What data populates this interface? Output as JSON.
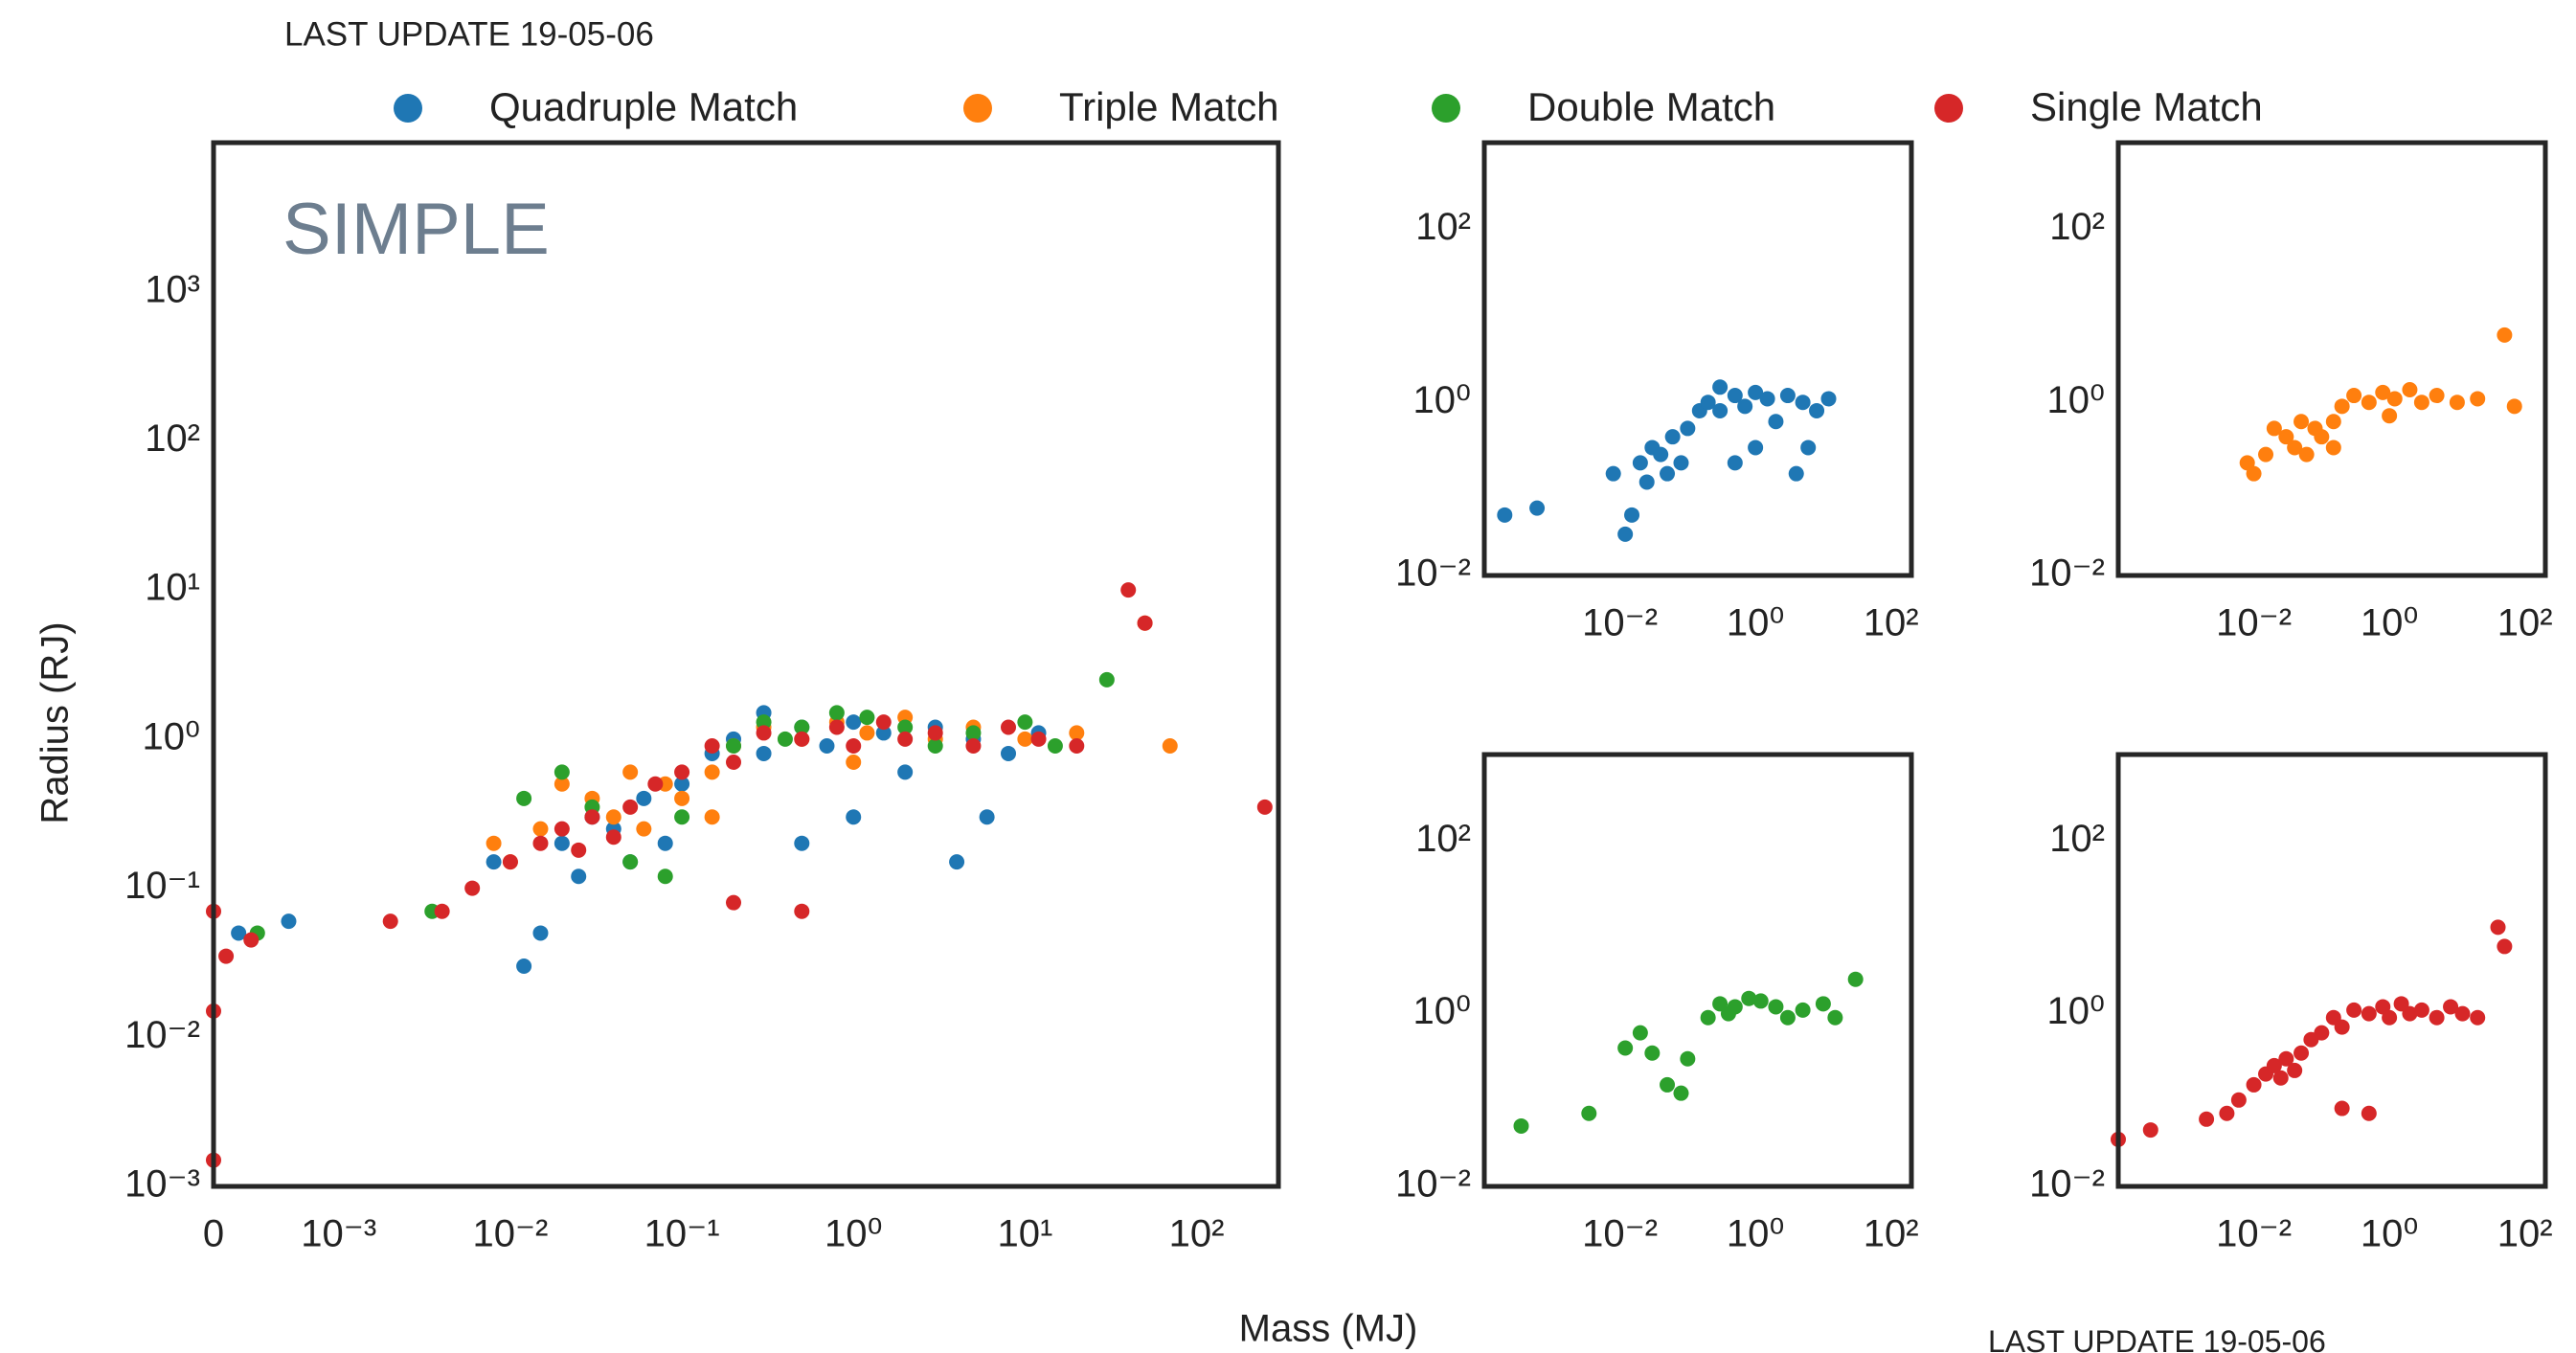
{
  "chart_data": [
    {
      "type": "scatter",
      "subtitle": "LAST UPDATE 19-05-06",
      "annotation": "SIMPLE",
      "x_label": "Mass (MJ)",
      "y_label": "Radius (RJ)",
      "xscale": "symlog",
      "yscale": "log",
      "legend": "top",
      "grid": false,
      "xlim": [
        0,
        300
      ],
      "ylim": [
        0.001,
        10000
      ],
      "xticks": [
        0,
        {
          "value": 0.001,
          "label": "10⁻³"
        },
        {
          "value": 0.01,
          "label": "10⁻²"
        },
        {
          "value": 0.1,
          "label": "10⁻¹"
        },
        {
          "value": 1,
          "label": "10⁰"
        },
        {
          "value": 10,
          "label": "10¹"
        },
        {
          "value": 100,
          "label": "10²"
        }
      ],
      "yticks": [
        {
          "value": 0.001,
          "label": "10⁻³"
        },
        {
          "value": 0.01,
          "label": "10⁻²"
        },
        {
          "value": 0.1,
          "label": "10⁻¹"
        },
        {
          "value": 1,
          "label": "10⁰"
        },
        {
          "value": 10,
          "label": "10¹"
        },
        {
          "value": 100,
          "label": "10²"
        },
        {
          "value": 1000,
          "label": "10³"
        }
      ],
      "series": [
        {
          "name": "Quadruple Match",
          "color": "#1f77b4",
          "x": [
            0.0002,
            0.0006,
            0.008,
            0.012,
            0.015,
            0.02,
            0.03,
            0.025,
            0.04,
            0.05,
            0.06,
            0.08,
            0.1,
            0.15,
            0.2,
            0.3,
            0.5,
            0.7,
            1.0,
            1.5,
            2,
            3,
            5,
            8,
            1,
            0.5,
            4,
            6,
            0.3,
            12
          ],
          "values": [
            0.05,
            0.06,
            0.15,
            0.03,
            0.05,
            0.2,
            0.3,
            0.12,
            0.25,
            0.15,
            0.4,
            0.2,
            0.5,
            0.8,
            1.0,
            1.5,
            1.2,
            0.9,
            1.3,
            1.1,
            0.6,
            1.2,
            1.0,
            0.8,
            0.3,
            0.2,
            0.15,
            0.3,
            0.8,
            1.1
          ]
        },
        {
          "name": "Triple Match",
          "color": "#ff7f0e",
          "x": [
            0.008,
            0.01,
            0.015,
            0.02,
            0.03,
            0.04,
            0.05,
            0.06,
            0.08,
            0.1,
            0.15,
            0.2,
            0.3,
            0.5,
            0.8,
            1.2,
            2,
            3,
            5,
            10,
            20,
            50,
            70,
            0.15,
            1
          ],
          "values": [
            0.2,
            0.15,
            0.25,
            0.5,
            0.4,
            0.3,
            0.6,
            0.25,
            0.5,
            0.4,
            0.6,
            0.9,
            1.2,
            1.0,
            1.3,
            1.1,
            1.4,
            1.0,
            1.2,
            1.0,
            1.1,
            6,
            0.9,
            0.3,
            0.7
          ]
        },
        {
          "name": "Double Match",
          "color": "#2ca02c",
          "x": [
            0.00035,
            0.0035,
            0.012,
            0.02,
            0.03,
            0.05,
            0.08,
            0.1,
            0.2,
            0.3,
            0.5,
            0.8,
            1.2,
            2,
            3,
            5,
            10,
            15,
            30,
            0.4
          ],
          "values": [
            0.05,
            0.07,
            0.4,
            0.6,
            0.35,
            0.15,
            0.12,
            0.3,
            0.9,
            1.3,
            1.2,
            1.5,
            1.4,
            1.2,
            0.9,
            1.1,
            1.3,
            0.9,
            2.5,
            1.0
          ]
        },
        {
          "name": "Single Match",
          "color": "#d62728",
          "x": [
            0,
            0,
            0,
            0.0001,
            0.0003,
            0.002,
            0.004,
            0.006,
            0.01,
            0.015,
            0.02,
            0.025,
            0.03,
            0.04,
            0.05,
            0.07,
            0.1,
            0.15,
            0.2,
            0.3,
            0.5,
            0.8,
            1,
            1.5,
            2,
            3,
            5,
            8,
            12,
            20,
            40,
            50,
            250,
            0.2,
            0.5
          ],
          "values": [
            0.07,
            0.015,
            0.0015,
            0.035,
            0.045,
            0.06,
            0.07,
            0.1,
            0.15,
            0.2,
            0.25,
            0.18,
            0.3,
            0.22,
            0.35,
            0.5,
            0.6,
            0.9,
            0.7,
            1.1,
            1.0,
            1.2,
            0.9,
            1.3,
            1.0,
            1.1,
            0.9,
            1.2,
            1.0,
            0.9,
            10,
            6,
            0.35,
            0.08,
            0.07
          ]
        }
      ]
    },
    {
      "type": "scatter",
      "xscale": "log",
      "yscale": "log",
      "xlim": [
        0.0001,
        200
      ],
      "ylim": [
        0.01,
        1000
      ],
      "xticks": [
        {
          "value": 0.01,
          "label": "10⁻²"
        },
        {
          "value": 1,
          "label": "10⁰"
        },
        {
          "value": 100,
          "label": "10²"
        }
      ],
      "yticks": [
        {
          "value": 0.01,
          "label": "10⁻²"
        },
        {
          "value": 1,
          "label": "10⁰"
        },
        {
          "value": 100,
          "label": "10²"
        }
      ],
      "series": [
        {
          "color": "#1f77b4",
          "x": [
            0.0002,
            0.0006,
            0.008,
            0.012,
            0.015,
            0.02,
            0.03,
            0.025,
            0.04,
            0.05,
            0.06,
            0.08,
            0.1,
            0.15,
            0.2,
            0.3,
            0.5,
            0.7,
            1.0,
            1.5,
            2,
            3,
            5,
            8,
            1,
            0.5,
            4,
            6,
            0.3,
            12
          ],
          "values": [
            0.05,
            0.06,
            0.15,
            0.03,
            0.05,
            0.2,
            0.3,
            0.12,
            0.25,
            0.15,
            0.4,
            0.2,
            0.5,
            0.8,
            1.0,
            1.5,
            1.2,
            0.9,
            1.3,
            1.1,
            0.6,
            1.2,
            1.0,
            0.8,
            0.3,
            0.2,
            0.15,
            0.3,
            0.8,
            1.1
          ]
        }
      ]
    },
    {
      "type": "scatter",
      "xscale": "log",
      "yscale": "log",
      "xlim": [
        0.0001,
        200
      ],
      "ylim": [
        0.01,
        1000
      ],
      "xticks": [
        {
          "value": 0.01,
          "label": "10⁻²"
        },
        {
          "value": 1,
          "label": "10⁰"
        },
        {
          "value": 100,
          "label": "10²"
        }
      ],
      "yticks": [
        {
          "value": 0.01,
          "label": "10⁻²"
        },
        {
          "value": 1,
          "label": "10⁰"
        },
        {
          "value": 100,
          "label": "10²"
        }
      ],
      "series": [
        {
          "color": "#ff7f0e",
          "x": [
            0.008,
            0.01,
            0.015,
            0.02,
            0.03,
            0.04,
            0.05,
            0.06,
            0.08,
            0.1,
            0.15,
            0.2,
            0.3,
            0.5,
            0.8,
            1.2,
            2,
            3,
            5,
            10,
            20,
            50,
            70,
            0.15,
            1
          ],
          "values": [
            0.2,
            0.15,
            0.25,
            0.5,
            0.4,
            0.3,
            0.6,
            0.25,
            0.5,
            0.4,
            0.6,
            0.9,
            1.2,
            1.0,
            1.3,
            1.1,
            1.4,
            1.0,
            1.2,
            1.0,
            1.1,
            6,
            0.9,
            0.3,
            0.7
          ]
        }
      ]
    },
    {
      "type": "scatter",
      "xscale": "log",
      "yscale": "log",
      "xlim": [
        0.0001,
        200
      ],
      "ylim": [
        0.01,
        1000
      ],
      "xticks": [
        {
          "value": 0.01,
          "label": "10⁻²"
        },
        {
          "value": 1,
          "label": "10⁰"
        },
        {
          "value": 100,
          "label": "10²"
        }
      ],
      "yticks": [
        {
          "value": 0.01,
          "label": "10⁻²"
        },
        {
          "value": 1,
          "label": "10⁰"
        },
        {
          "value": 100,
          "label": "10²"
        }
      ],
      "series": [
        {
          "color": "#2ca02c",
          "x": [
            0.00035,
            0.0035,
            0.012,
            0.02,
            0.03,
            0.05,
            0.08,
            0.1,
            0.2,
            0.3,
            0.5,
            0.8,
            1.2,
            2,
            3,
            5,
            10,
            15,
            30,
            0.4
          ],
          "values": [
            0.05,
            0.07,
            0.4,
            0.6,
            0.35,
            0.15,
            0.12,
            0.3,
            0.9,
            1.3,
            1.2,
            1.5,
            1.4,
            1.2,
            0.9,
            1.1,
            1.3,
            0.9,
            2.5,
            1.0
          ]
        }
      ]
    },
    {
      "type": "scatter",
      "xscale": "log",
      "yscale": "log",
      "xlim": [
        0.0001,
        200
      ],
      "ylim": [
        0.01,
        1000
      ],
      "xticks": [
        {
          "value": 0.01,
          "label": "10⁻²"
        },
        {
          "value": 1,
          "label": "10⁰"
        },
        {
          "value": 100,
          "label": "10²"
        }
      ],
      "yticks": [
        {
          "value": 0.01,
          "label": "10⁻²"
        },
        {
          "value": 1,
          "label": "10⁰"
        },
        {
          "value": 100,
          "label": "10²"
        }
      ],
      "series": [
        {
          "color": "#d62728",
          "x": [
            0.0001,
            0.0003,
            0.002,
            0.004,
            0.006,
            0.01,
            0.015,
            0.02,
            0.025,
            0.03,
            0.04,
            0.05,
            0.07,
            0.1,
            0.15,
            0.2,
            0.3,
            0.5,
            0.8,
            1,
            1.5,
            2,
            3,
            5,
            8,
            12,
            20,
            40,
            50,
            0.2,
            0.5
          ],
          "values": [
            0.035,
            0.045,
            0.06,
            0.07,
            0.1,
            0.15,
            0.2,
            0.25,
            0.18,
            0.3,
            0.22,
            0.35,
            0.5,
            0.6,
            0.9,
            0.7,
            1.1,
            1.0,
            1.2,
            0.9,
            1.3,
            1.0,
            1.1,
            0.9,
            1.2,
            1.0,
            0.9,
            10,
            6,
            0.08,
            0.07
          ]
        }
      ]
    }
  ]
}
